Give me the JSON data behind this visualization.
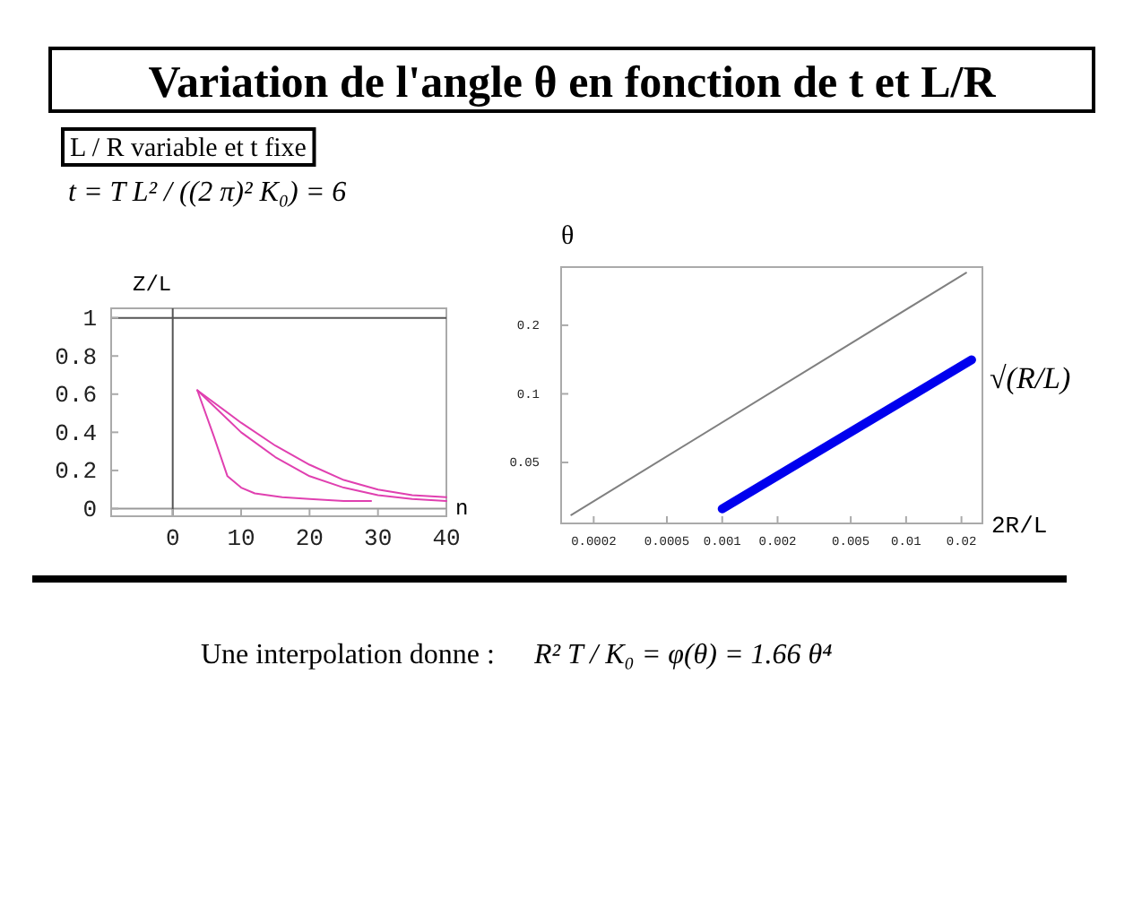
{
  "chart_data": [
    {
      "type": "line",
      "title": "Variation de l'angle θ en fonction de t et L/R",
      "subtitle": "L / R variable et t fixe",
      "xlabel": "n",
      "ylabel": "Z/L",
      "annotations": [
        "t = T L² / ((2 π)² K₀) = 6"
      ],
      "xlim": [
        -9,
        40
      ],
      "ylim": [
        -0.04,
        1.05
      ],
      "xticks": [
        0,
        10,
        20,
        30,
        40
      ],
      "yticks": [
        0,
        0.2,
        0.4,
        0.6,
        0.8,
        1
      ],
      "grid": false,
      "ref_lines": [
        {
          "axis": "y",
          "value": 1,
          "color": "#555555"
        },
        {
          "axis": "y",
          "value": 0,
          "color": "#999999"
        },
        {
          "axis": "x",
          "value": 0,
          "color": "#555555"
        }
      ],
      "series": [
        {
          "color": "#e040b0",
          "x": [
            3.6,
            10,
            15,
            20,
            25,
            30,
            35,
            40
          ],
          "values": [
            0.62,
            0.45,
            0.33,
            0.23,
            0.15,
            0.1,
            0.07,
            0.06
          ]
        },
        {
          "color": "#e040b0",
          "x": [
            3.6,
            10,
            15,
            20,
            25,
            30,
            35,
            40
          ],
          "values": [
            0.62,
            0.4,
            0.27,
            0.17,
            0.11,
            0.07,
            0.05,
            0.04
          ]
        },
        {
          "color": "#e040b0",
          "x": [
            3.6,
            6,
            8,
            10,
            12,
            16,
            20,
            25,
            29
          ],
          "values": [
            0.62,
            0.38,
            0.17,
            0.11,
            0.08,
            0.06,
            0.05,
            0.04,
            0.04
          ]
        }
      ]
    },
    {
      "type": "line",
      "xlabel": "2R/L",
      "ylabel": "θ",
      "log": "xy",
      "annotations": [
        "Une interpolation donne :",
        "R² T / K₀ = φ(θ) = 1.66 θ⁴"
      ],
      "xlim": [
        0.000133,
        0.026
      ],
      "ylim": [
        0.027,
        0.36
      ],
      "xticks": [
        0.0002,
        0.0005,
        0.001,
        0.002,
        0.005,
        0.01,
        0.02
      ],
      "yticks": [
        0.05,
        0.1,
        0.2
      ],
      "grid": false,
      "series": [
        {
          "color": "#808080",
          "x": [
            0.000151,
            0.0212
          ],
          "values": [
            0.0294,
            0.34
          ]
        },
        {
          "name": "√(R/L)",
          "color": "#0000ee",
          "x": [
            0.001,
            0.0227
          ],
          "values": [
            0.0313,
            0.141
          ]
        }
      ]
    }
  ]
}
